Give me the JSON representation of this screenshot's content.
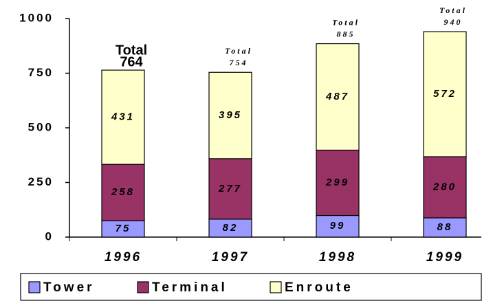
{
  "chart_data": {
    "type": "stacked_bar",
    "categories": [
      "1996",
      "1997",
      "1998",
      "1999"
    ],
    "series": [
      {
        "name": "Tower",
        "color": "#9999ff",
        "values": [
          75,
          82,
          99,
          88
        ]
      },
      {
        "name": "Terminal",
        "color": "#993366",
        "values": [
          258,
          277,
          299,
          280
        ]
      },
      {
        "name": "Enroute",
        "color": "#ffffcc",
        "values": [
          431,
          395,
          487,
          572
        ]
      }
    ],
    "total_label": "Total",
    "totals": [
      764,
      754,
      885,
      940
    ],
    "ylim": [
      0,
      1000
    ],
    "yticks": [
      0,
      250,
      500,
      750,
      1000
    ],
    "legend": "bottom"
  }
}
